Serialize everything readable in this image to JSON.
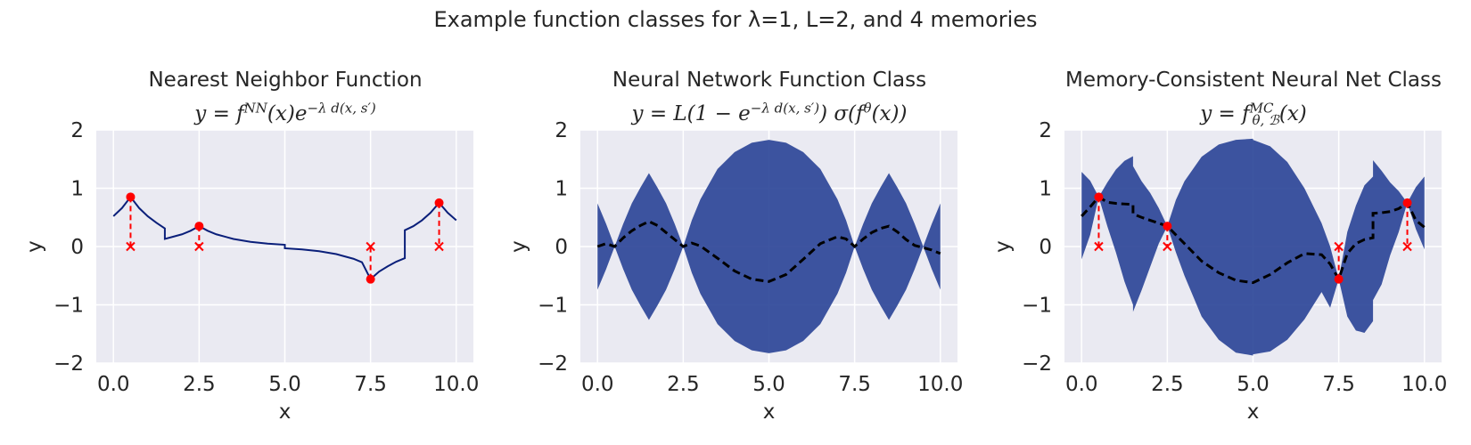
{
  "figure": {
    "title": "Example function classes for λ=1, L=2, and 4 memories"
  },
  "colors": {
    "band": "#233d93",
    "curve_nn": "#0a1f7a",
    "memory": "#ff0000",
    "dashed": "#000000",
    "panel_bg": "#eaeaf2",
    "grid": "#ffffff"
  },
  "panels": [
    {
      "title": "Nearest Neighbor Function",
      "formula": "y = f^NN(x) e^(−λ d(x, s′))",
      "xlabel": "x",
      "ylabel": "y"
    },
    {
      "title": "Neural Network Function Class",
      "formula": "y = L(1 − e^(−λ d(x, s′))) σ(f^θ(x))",
      "xlabel": "x",
      "ylabel": "y"
    },
    {
      "title": "Memory-Consistent Neural Net Class",
      "formula": "y = f^MC_(θ, B)(x)",
      "xlabel": "x",
      "ylabel": "y"
    }
  ],
  "chart_data": [
    {
      "type": "line",
      "title": "Nearest Neighbor Function",
      "xlabel": "x",
      "ylabel": "y",
      "xlim": [
        -0.5,
        10.5
      ],
      "ylim": [
        -2,
        2
      ],
      "xticks": [
        0.0,
        2.5,
        5.0,
        7.5,
        10.0
      ],
      "xtick_labels": [
        "0.0",
        "2.5",
        "5.0",
        "7.5",
        "10.0"
      ],
      "yticks": [
        -2,
        -1,
        0,
        1,
        2
      ],
      "ytick_labels": [
        "−2",
        "−1",
        "0",
        "1",
        "2"
      ],
      "grid": true,
      "series": [
        {
          "kind": "curve",
          "x": [
            0,
            0.25,
            0.5,
            0.75,
            1.0,
            1.25,
            1.5,
            1.5,
            1.75,
            2.0,
            2.25,
            2.5,
            2.75,
            3.0,
            3.5,
            4.0,
            4.5,
            5.0,
            5.0,
            5.5,
            6.0,
            6.5,
            7.0,
            7.25,
            7.5,
            7.75,
            8.0,
            8.25,
            8.5,
            8.5,
            8.75,
            9.0,
            9.25,
            9.5,
            9.75,
            10.0
          ],
          "y": [
            0.52,
            0.66,
            0.85,
            0.66,
            0.52,
            0.41,
            0.31,
            0.13,
            0.17,
            0.21,
            0.27,
            0.35,
            0.27,
            0.21,
            0.13,
            0.08,
            0.05,
            0.03,
            -0.03,
            -0.05,
            -0.08,
            -0.13,
            -0.21,
            -0.27,
            -0.56,
            -0.43,
            -0.34,
            -0.26,
            -0.2,
            0.28,
            0.35,
            0.45,
            0.58,
            0.75,
            0.58,
            0.45
          ]
        }
      ],
      "memories": {
        "x": [
          0.5,
          2.5,
          7.5,
          9.5
        ],
        "y": [
          0.85,
          0.35,
          -0.56,
          0.75
        ]
      }
    },
    {
      "type": "area",
      "title": "Neural Network Function Class",
      "xlabel": "x",
      "ylabel": "y",
      "xlim": [
        -0.5,
        10.5
      ],
      "ylim": [
        -2,
        2
      ],
      "xticks": [
        0.0,
        2.5,
        5.0,
        7.5,
        10.0
      ],
      "xtick_labels": [
        "0.0",
        "2.5",
        "5.0",
        "7.5",
        "10.0"
      ],
      "yticks": [
        -2,
        -1,
        0,
        1,
        2
      ],
      "ytick_labels": [
        "−2",
        "−1",
        "0",
        "1",
        "2"
      ],
      "grid": true,
      "band": {
        "x": [
          0,
          0.25,
          0.5,
          0.75,
          1.0,
          1.25,
          1.5,
          1.75,
          2.0,
          2.25,
          2.5,
          2.75,
          3.0,
          3.5,
          4.0,
          4.5,
          5.0,
          5.5,
          6.0,
          6.5,
          7.0,
          7.25,
          7.5,
          7.75,
          8.0,
          8.25,
          8.5,
          8.75,
          9.0,
          9.25,
          9.5,
          9.75,
          10.0
        ],
        "upper": [
          0.74,
          0.39,
          0.0,
          0.39,
          0.74,
          1.01,
          1.26,
          1.01,
          0.74,
          0.39,
          0.0,
          0.45,
          0.81,
          1.33,
          1.62,
          1.78,
          1.83,
          1.78,
          1.62,
          1.33,
          0.81,
          0.45,
          0.0,
          0.39,
          0.74,
          1.01,
          1.26,
          1.01,
          0.74,
          0.39,
          0.0,
          0.39,
          0.74
        ],
        "lower": [
          -0.74,
          -0.39,
          0.0,
          -0.39,
          -0.74,
          -1.01,
          -1.26,
          -1.01,
          -0.74,
          -0.39,
          0.0,
          -0.45,
          -0.81,
          -1.33,
          -1.62,
          -1.78,
          -1.83,
          -1.78,
          -1.62,
          -1.33,
          -0.81,
          -0.45,
          0.0,
          -0.39,
          -0.74,
          -1.01,
          -1.26,
          -1.01,
          -0.74,
          -0.39,
          0.0,
          -0.39,
          -0.74
        ]
      },
      "series": [
        {
          "kind": "dashed",
          "x": [
            0,
            0.25,
            0.5,
            0.75,
            1.0,
            1.25,
            1.5,
            1.75,
            2.0,
            2.25,
            2.5,
            2.75,
            3.0,
            3.5,
            4.0,
            4.5,
            5.0,
            5.5,
            6.0,
            6.5,
            7.0,
            7.25,
            7.5,
            7.75,
            8.0,
            8.25,
            8.5,
            8.75,
            9.0,
            9.25,
            9.5,
            9.75,
            10.0
          ],
          "y": [
            0.0,
            0.05,
            0.0,
            0.15,
            0.27,
            0.36,
            0.43,
            0.36,
            0.24,
            0.12,
            0.0,
            0.06,
            0.01,
            -0.2,
            -0.42,
            -0.56,
            -0.6,
            -0.48,
            -0.22,
            0.05,
            0.17,
            0.13,
            0.0,
            0.13,
            0.24,
            0.31,
            0.35,
            0.25,
            0.12,
            0.02,
            -0.02,
            -0.06,
            -0.12
          ]
        }
      ]
    },
    {
      "type": "area",
      "title": "Memory-Consistent Neural Net Class",
      "xlabel": "x",
      "ylabel": "y",
      "xlim": [
        -0.5,
        10.5
      ],
      "ylim": [
        -2,
        2
      ],
      "xticks": [
        0.0,
        2.5,
        5.0,
        7.5,
        10.0
      ],
      "xtick_labels": [
        "0.0",
        "2.5",
        "5.0",
        "7.5",
        "10.0"
      ],
      "yticks": [
        -2,
        -1,
        0,
        1,
        2
      ],
      "ytick_labels": [
        "−2",
        "−1",
        "0",
        "1",
        "2"
      ],
      "grid": true,
      "band": {
        "x": [
          0,
          0.25,
          0.5,
          0.75,
          1.0,
          1.25,
          1.5,
          1.5,
          1.75,
          2.0,
          2.25,
          2.5,
          2.75,
          3.0,
          3.5,
          4.0,
          4.5,
          5.0,
          5.0,
          5.5,
          6.0,
          6.5,
          7.0,
          7.25,
          7.5,
          7.75,
          8.0,
          8.25,
          8.5,
          8.5,
          8.75,
          9.0,
          9.25,
          9.5,
          9.75,
          10.0
        ],
        "upper": [
          1.28,
          1.13,
          0.85,
          1.1,
          1.32,
          1.47,
          1.55,
          1.38,
          1.12,
          0.92,
          0.66,
          0.35,
          0.8,
          1.12,
          1.54,
          1.75,
          1.83,
          1.85,
          1.83,
          1.72,
          1.45,
          1.0,
          0.4,
          0.0,
          -0.56,
          0.25,
          0.7,
          1.05,
          1.2,
          1.48,
          1.3,
          1.1,
          0.95,
          0.75,
          1.02,
          1.2
        ],
        "lower": [
          -0.22,
          0.2,
          0.85,
          0.35,
          -0.1,
          -0.6,
          -1.0,
          -1.12,
          -0.75,
          -0.35,
          0.05,
          0.35,
          -0.1,
          -0.5,
          -1.2,
          -1.6,
          -1.82,
          -1.87,
          -1.85,
          -1.8,
          -1.6,
          -1.25,
          -0.78,
          -1.05,
          -0.56,
          -1.2,
          -1.44,
          -1.48,
          -1.28,
          -0.92,
          -0.65,
          -0.15,
          0.25,
          0.75,
          0.3,
          -0.05
        ]
      },
      "series": [
        {
          "kind": "dashed",
          "x": [
            0,
            0.25,
            0.5,
            0.75,
            1.0,
            1.25,
            1.5,
            1.5,
            1.75,
            2.0,
            2.25,
            2.5,
            2.75,
            3.0,
            3.5,
            4.0,
            4.5,
            5.0,
            5.5,
            6.0,
            6.5,
            7.0,
            7.25,
            7.5,
            7.75,
            8.0,
            8.25,
            8.5,
            8.5,
            8.75,
            9.0,
            9.25,
            9.5,
            9.75,
            10.0
          ],
          "y": [
            0.52,
            0.68,
            0.85,
            0.76,
            0.74,
            0.73,
            0.72,
            0.56,
            0.5,
            0.45,
            0.4,
            0.35,
            0.2,
            0.05,
            -0.25,
            -0.45,
            -0.58,
            -0.62,
            -0.48,
            -0.28,
            -0.12,
            -0.14,
            -0.3,
            -0.56,
            -0.12,
            0.05,
            0.12,
            0.15,
            0.57,
            0.58,
            0.6,
            0.65,
            0.75,
            0.45,
            0.33
          ]
        }
      ],
      "memories": {
        "x": [
          0.5,
          2.5,
          7.5,
          9.5
        ],
        "y": [
          0.85,
          0.35,
          -0.56,
          0.75
        ]
      }
    }
  ]
}
